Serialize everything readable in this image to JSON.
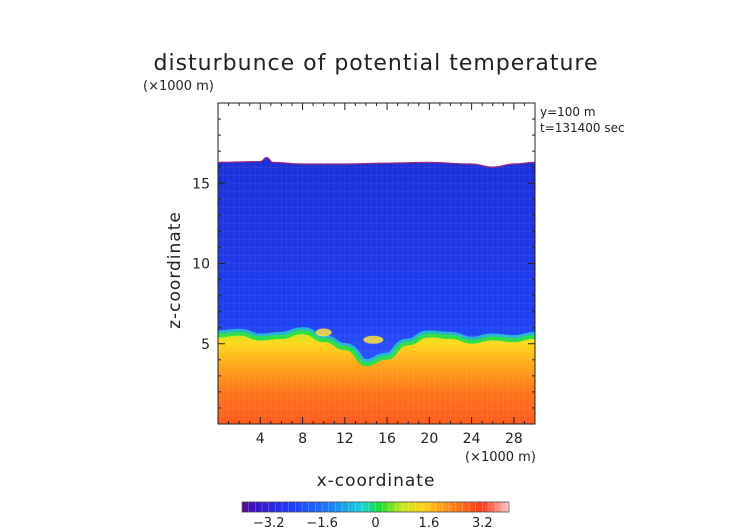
{
  "chart_data": {
    "type": "heatmap",
    "title": "disturbunce of potential temperature",
    "xlabel": "x-coordinate",
    "ylabel": "z-coordinate",
    "x_unit": "(×1000 m)",
    "y_unit": "(×1000 m)",
    "annotations": [
      "y=100 m",
      "t=131400 sec"
    ],
    "xlim": [
      0,
      30
    ],
    "ylim": [
      0,
      20
    ],
    "x_ticks": [
      4,
      8,
      12,
      16,
      20,
      24,
      28
    ],
    "y_ticks": [
      5,
      10,
      15
    ],
    "colorbar": {
      "range": [
        -4,
        4
      ],
      "ticks": [
        -3.2,
        -1.6,
        0,
        1.6,
        3.2
      ],
      "tick_labels": [
        "−3.2",
        "−1.6",
        "0",
        "1.6",
        "3.2"
      ]
    },
    "field_top": {
      "x": [
        0,
        4,
        4.6,
        5.2,
        8,
        12,
        16,
        20,
        24,
        26,
        28,
        30
      ],
      "z": [
        16.3,
        16.35,
        16.6,
        16.3,
        16.2,
        16.2,
        16.25,
        16.3,
        16.2,
        16.0,
        16.2,
        16.3
      ]
    },
    "inversion_layer": {
      "x": [
        0,
        2,
        4,
        6,
        8,
        10,
        12,
        14,
        16,
        18,
        20,
        22,
        24,
        26,
        28,
        30
      ],
      "z": [
        5.4,
        5.5,
        5.2,
        5.3,
        5.6,
        5.1,
        4.6,
        3.6,
        4.0,
        4.9,
        5.4,
        5.3,
        5.0,
        5.2,
        5.1,
        5.3
      ]
    },
    "values": {
      "surface_layer": 2.8,
      "upper_layer": -3.3
    }
  }
}
